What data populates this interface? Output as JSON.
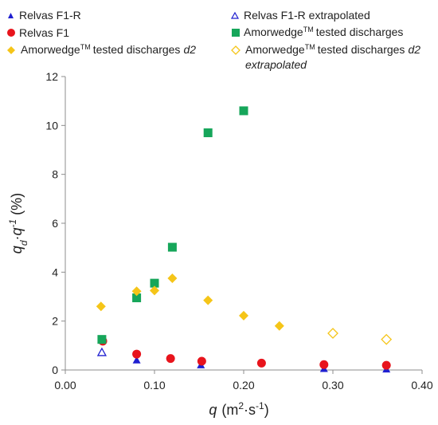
{
  "chart_data": {
    "type": "scatter",
    "xlabel": {
      "main": "q",
      "unit": "(m",
      "sup1": "2",
      "mid": "·s",
      "sup2": "-1",
      "close": ")"
    },
    "ylabel": {
      "q": "q",
      "sub": "d",
      "mid": "·q",
      "sup": "-1",
      "unit": "(%)"
    },
    "xlim": [
      0,
      0.4
    ],
    "ylim": [
      0,
      12
    ],
    "xticks": [
      "0.00",
      "0.10",
      "0.20",
      "0.30",
      "0.40"
    ],
    "xtick_values": [
      0,
      0.1,
      0.2,
      0.3,
      0.4
    ],
    "yticks": [
      "0",
      "2",
      "4",
      "6",
      "8",
      "10",
      "12"
    ],
    "ytick_values": [
      0,
      2,
      4,
      6,
      8,
      10,
      12
    ],
    "grid": false,
    "legend_position": "top",
    "series": [
      {
        "name": "Relvas F1-R",
        "marker": "triangle",
        "filled": true,
        "color": "#1f1fd0",
        "x": [
          0.08,
          0.152,
          0.29,
          0.36
        ],
        "y": [
          0.4,
          0.2,
          0.05,
          0.03
        ]
      },
      {
        "name": "Relvas F1-R extrapolated",
        "marker": "triangle",
        "filled": false,
        "color": "#1f1fd0",
        "x": [
          0.041
        ],
        "y": [
          0.72
        ]
      },
      {
        "name": "Relvas F1",
        "marker": "circle",
        "filled": true,
        "color": "#e8141c",
        "x": [
          0.042,
          0.08,
          0.118,
          0.153,
          0.22,
          0.29,
          0.36
        ],
        "y": [
          1.18,
          0.65,
          0.47,
          0.36,
          0.28,
          0.22,
          0.19
        ]
      },
      {
        "name": "Amorwedge tested discharges",
        "name_parts": [
          "Amorwedge",
          "TM",
          "tested discharges"
        ],
        "marker": "square",
        "filled": true,
        "color": "#16a65a",
        "x": [
          0.041,
          0.08,
          0.1,
          0.12,
          0.16,
          0.2
        ],
        "y": [
          1.25,
          2.95,
          3.55,
          5.02,
          9.7,
          10.6
        ]
      },
      {
        "name": "Amorwedge tested discharges d2",
        "name_parts": [
          "Amorwedge",
          "TM",
          "tested discharges",
          "d2"
        ],
        "marker": "diamond",
        "filled": true,
        "color": "#f5c518",
        "x": [
          0.04,
          0.08,
          0.1,
          0.12,
          0.16,
          0.2,
          0.24
        ],
        "y": [
          2.6,
          3.22,
          3.25,
          3.75,
          2.85,
          2.22,
          1.8
        ]
      },
      {
        "name": "Amorwedge tested discharges d2 extrapolated",
        "name_parts": [
          "Amorwedge",
          "TM",
          "tested discharges",
          "d2",
          "extrapolated"
        ],
        "marker": "diamond",
        "filled": false,
        "color": "#f5c518",
        "x": [
          0.3,
          0.36
        ],
        "y": [
          1.5,
          1.25
        ]
      }
    ]
  }
}
